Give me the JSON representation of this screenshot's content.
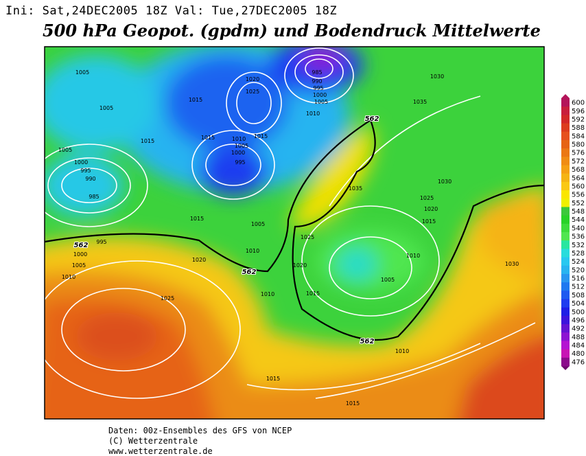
{
  "header": {
    "run": "Ini: Sat,24DEC2005 18Z Val: Tue,27DEC2005 18Z",
    "title": "500 hPa Geopot. (gpdm) und Bodendruck Mittelwerte"
  },
  "colorbar": {
    "levels": [
      600,
      596,
      592,
      588,
      584,
      580,
      576,
      572,
      568,
      564,
      560,
      556,
      552,
      548,
      544,
      540,
      536,
      532,
      528,
      524,
      520,
      516,
      512,
      508,
      504,
      500,
      496,
      492,
      488,
      484,
      480,
      476
    ],
    "colors": [
      "#b4145a",
      "#c81e3c",
      "#d22828",
      "#dc3c1e",
      "#e6501e",
      "#e66414",
      "#eb7814",
      "#f08c14",
      "#f5a014",
      "#f5b414",
      "#fac814",
      "#fae600",
      "#f0f000",
      "#3cc83c",
      "#28d228",
      "#3cdc3c",
      "#50e650",
      "#28e6a0",
      "#28dcdc",
      "#28c8f0",
      "#28b4f0",
      "#2896f0",
      "#1e78f0",
      "#1e5af0",
      "#1e3cf0",
      "#1e1ee6",
      "#3c14dc",
      "#6414d2",
      "#8c14d2",
      "#b414d2",
      "#c814b4",
      "#8c0a8c"
    ]
  },
  "contour_labels": [
    "1005",
    "1005",
    "1005",
    "1000",
    "995",
    "990",
    "985",
    "995",
    "1000",
    "1005",
    "1010",
    "1015",
    "1015",
    "1020",
    "1025",
    "1010",
    "1005",
    "1000",
    "995",
    "1015",
    "1015",
    "1015",
    "1005",
    "1010",
    "1020",
    "985",
    "990",
    "995",
    "1000",
    "1005",
    "1010",
    "1030",
    "1035",
    "1035",
    "1030",
    "1025",
    "1020",
    "1015",
    "1025",
    "1020",
    "1010",
    "1005",
    "1015",
    "1010",
    "1025",
    "1030",
    "1010",
    "1015",
    "1015",
    "562",
    "562",
    "562",
    "562"
  ],
  "footer": [
    "Daten: 00z-Ensembles des GFS von NCEP",
    "(C) Wetterzentrale",
    "www.wetterzentrale.de"
  ]
}
